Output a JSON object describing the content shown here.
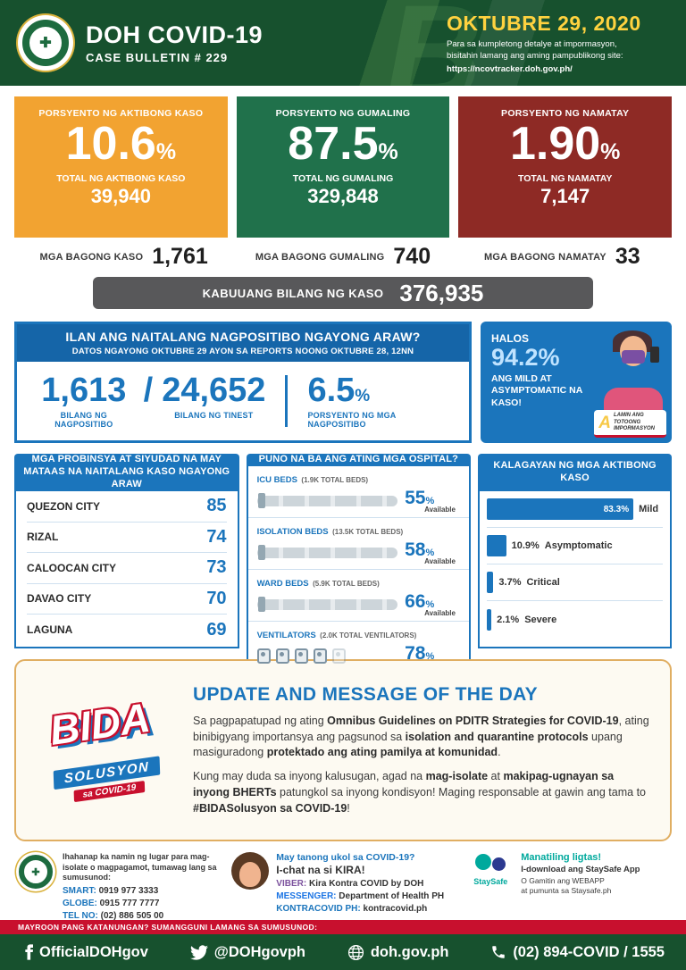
{
  "colors": {
    "header_green": "#17512e",
    "active_orange": "#f2a331",
    "recovered_green": "#20714b",
    "died_maroon": "#8e2a25",
    "blue": "#1b75bc",
    "gray_bar": "#58585a",
    "red": "#c8102e",
    "yellow": "#ffd23f",
    "teal": "#00a99d"
  },
  "symbols": {
    "percent": "%",
    "slash": "/"
  },
  "header": {
    "title": "DOH COVID-19",
    "subtitle": "CASE BULLETIN # 229",
    "date": "OKTUBRE 29, 2020",
    "info_line1": "Para sa kumpletong detalye at impormasyon,",
    "info_line2": "bisitahin lamang ang aming pampublikong site:",
    "url": "https://ncovtracker.doh.gov.ph/",
    "watermark": "B"
  },
  "cards": [
    {
      "label": "PORSYENTO NG AKTIBONG KASO",
      "percent": "10.6",
      "total_label": "TOTAL NG AKTIBONG KASO",
      "total": "39,940"
    },
    {
      "label": "PORSYENTO NG GUMALING",
      "percent": "87.5",
      "total_label": "TOTAL NG GUMALING",
      "total": "329,848"
    },
    {
      "label": "PORSYENTO NG NAMATAY",
      "percent": "1.90",
      "total_label": "TOTAL NG NAMATAY",
      "total": "7,147"
    }
  ],
  "new_stats": [
    {
      "label": "MGA BAGONG KASO",
      "value": "1,761"
    },
    {
      "label": "MGA BAGONG GUMALING",
      "value": "740"
    },
    {
      "label": "MGA BAGONG NAMATAY",
      "value": "33"
    }
  ],
  "total_bar": {
    "label": "KABUUANG BILANG NG KASO",
    "value": "376,935"
  },
  "positivity": {
    "title": "ILAN ANG NAITALANG NAGPOSITIBO NGAYONG ARAW?",
    "subtitle": "DATOS NGAYONG OKTUBRE 29 AYON SA REPORTS NOONG OKTUBRE 28, 12NN",
    "positive": "1,613",
    "positive_label": "BILANG NG NAGPOSITIBO",
    "tested": "24,652",
    "tested_label": "BILANG NG TINEST",
    "rate": "6.5",
    "rate_label": "PORSYENTO NG MGA NAGPOSITIBO"
  },
  "mild_callout": {
    "prefix": "HALOS",
    "percent": "94.2%",
    "text": "ANG MILD AT ASYMPTOMATIC NA KASO!",
    "badge_letter": "A",
    "badge_text": "LAMIN ANG TOTOONG IMPORMASYON"
  },
  "areas": {
    "header": "MGA PROBINSYA AT SIYUDAD NA MAY MATAAS NA NAITALANG KASO NGAYONG ARAW",
    "rows": [
      {
        "name": "QUEZON CITY",
        "value": "85"
      },
      {
        "name": "RIZAL",
        "value": "74"
      },
      {
        "name": "CALOOCAN CITY",
        "value": "73"
      },
      {
        "name": "DAVAO CITY",
        "value": "70"
      },
      {
        "name": "LAGUNA",
        "value": "69"
      }
    ]
  },
  "hospitals": {
    "header": "PUNO NA BA ANG ATING MGA OSPITAL?",
    "available_label": "Available",
    "items": [
      {
        "name": "ICU BEDS",
        "total": "(1.9K TOTAL BEDS)",
        "percent": "55"
      },
      {
        "name": "ISOLATION BEDS",
        "total": "(13.5K TOTAL BEDS)",
        "percent": "58"
      },
      {
        "name": "WARD BEDS",
        "total": "(5.9K TOTAL BEDS)",
        "percent": "66"
      },
      {
        "name": "VENTILATORS",
        "total": "(2.0K TOTAL VENTILATORS)",
        "percent": "78"
      }
    ]
  },
  "conditions": {
    "header": "KALAGAYAN NG MGA AKTIBONG KASO",
    "rows": [
      {
        "percent": "83.3%",
        "label": "Mild",
        "width": 83.3
      },
      {
        "percent": "10.9%",
        "label": "Asymptomatic",
        "width": 10.9
      },
      {
        "percent": "3.7%",
        "label": "Critical",
        "width": 3.7
      },
      {
        "percent": "2.1%",
        "label": "Severe",
        "width": 2.1
      }
    ]
  },
  "message": {
    "title": "UPDATE AND MESSAGE OF THE DAY",
    "p1": [
      {
        "t": "Sa pagpapatupad ng ating "
      },
      {
        "t": "Omnibus Guidelines on PDITR Strategies for COVID-19",
        "b": true
      },
      {
        "t": ", ating binibigyang importansya ang pagsunod sa "
      },
      {
        "t": "isolation and quarantine protocols",
        "b": true
      },
      {
        "t": " upang masiguradong "
      },
      {
        "t": "protektado ang ating pamilya at komunidad",
        "b": true
      },
      {
        "t": "."
      }
    ],
    "p2": [
      {
        "t": "Kung may duda sa inyong kalusugan, agad na "
      },
      {
        "t": "mag-isolate",
        "b": true
      },
      {
        "t": " at "
      },
      {
        "t": "makipag-ugnayan sa inyong BHERTs",
        "b": true
      },
      {
        "t": " patungkol sa inyong kondisyon! Maging responsable at gawin ang tama to "
      },
      {
        "t": "#BIDASolusyon sa COVID-19",
        "b": true
      },
      {
        "t": "!"
      }
    ]
  },
  "bida_logo": {
    "line1": "BIDA",
    "line2": "SOLUSYON",
    "line3": "sa COVID-19"
  },
  "footer": {
    "isolation": {
      "intro": "Ihahanap ka namin ng lugar para mag-isolate o magpagamot, tumawag lang sa sumusunod:",
      "lines": [
        {
          "label": "SMART:",
          "value": "0919 977 3333"
        },
        {
          "label": "GLOBE:",
          "value": "0915 777 7777"
        },
        {
          "label": "TEL NO:",
          "value": "(02) 886 505 00"
        }
      ]
    },
    "kira": {
      "question": "May tanong ukol sa COVID-19?",
      "cta": "I-chat na si KIRA!",
      "lines": [
        {
          "label": "VIBER:",
          "value": "Kira Kontra COVID by DOH"
        },
        {
          "label": "MESSENGER:",
          "value": "Department of Health PH"
        },
        {
          "label": "KONTRACOVID PH:",
          "value": "kontracovid.ph"
        }
      ]
    },
    "staysafe": {
      "logo_text": "StaySafe",
      "title": "Manatiling ligtas!",
      "line1": "I-download ang StaySafe App",
      "line2": "O Gamitin ang WEBAPP",
      "line3": "at pumunta sa Staysafe.ph"
    }
  },
  "bottom": {
    "strip": "MAYROON PANG KATANUNGAN? SUMANGGUNI LAMANG SA SUMUSUNOD:",
    "items": [
      {
        "icon": "facebook",
        "text": "OfficialDOHgov"
      },
      {
        "icon": "twitter",
        "text": "@DOHgovph"
      },
      {
        "icon": "globe",
        "text": "doh.gov.ph"
      },
      {
        "icon": "phone",
        "text": "(02) 894-COVID  /  1555"
      }
    ]
  }
}
